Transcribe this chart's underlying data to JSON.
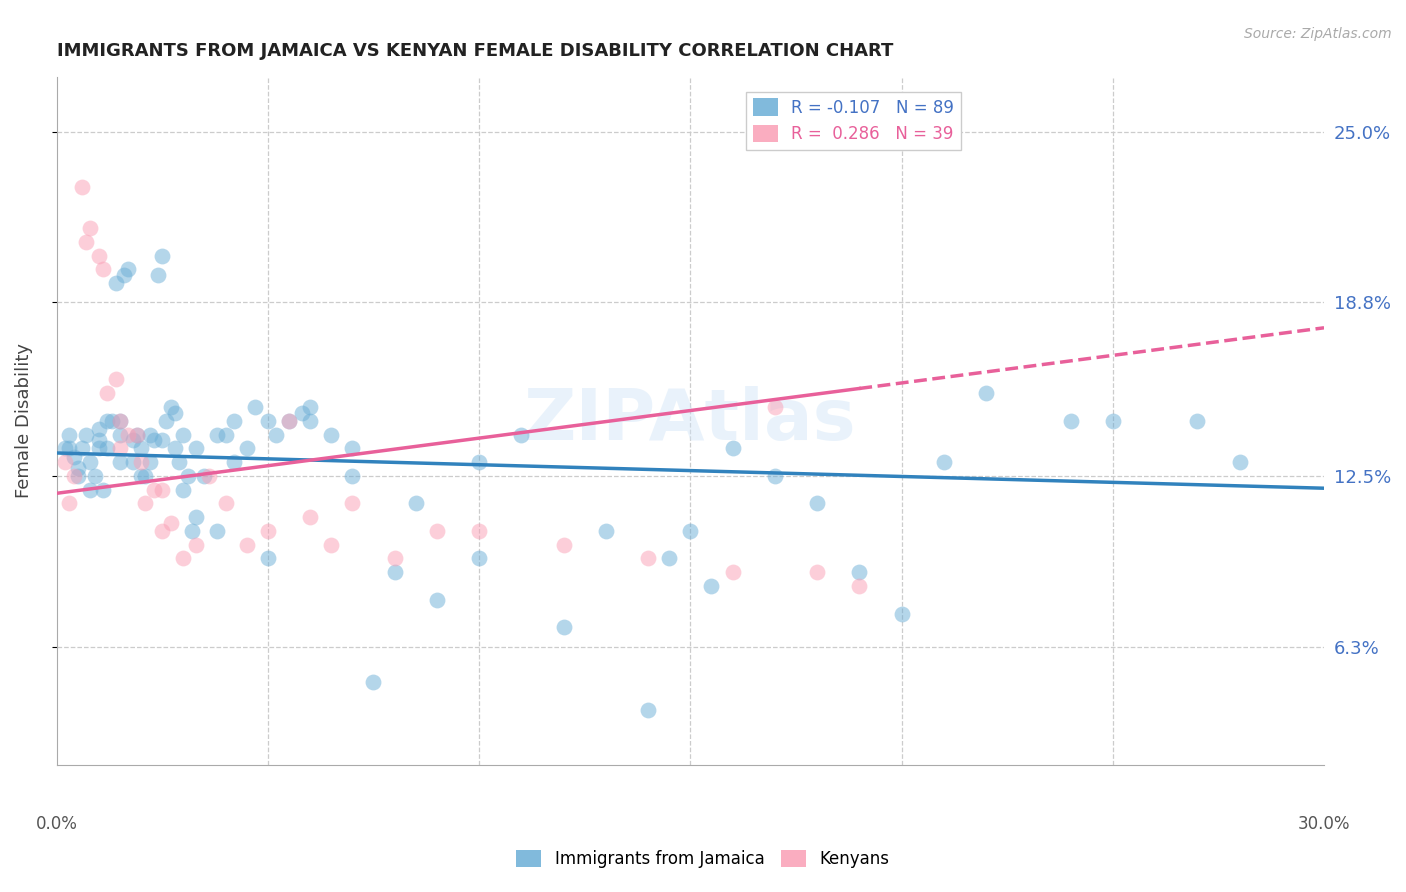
{
  "title": "IMMIGRANTS FROM JAMAICA VS KENYAN FEMALE DISABILITY CORRELATION CHART",
  "source": "Source: ZipAtlas.com",
  "ylabel": "Female Disability",
  "y_ticks": [
    6.3,
    12.5,
    18.8,
    25.0
  ],
  "y_tick_labels": [
    "6.3%",
    "12.5%",
    "18.8%",
    "25.0%"
  ],
  "x_min": 0.0,
  "x_max": 30.0,
  "y_min": 2.0,
  "y_max": 27.0,
  "color_blue": "#6baed6",
  "color_pink": "#fa9fb5",
  "line_blue": "#3182bd",
  "line_pink": "#e8609a",
  "watermark": "ZIPAtlas",
  "jamaica_x": [
    0.2,
    0.3,
    0.4,
    0.5,
    0.6,
    0.7,
    0.8,
    0.9,
    1.0,
    1.0,
    1.1,
    1.2,
    1.3,
    1.4,
    1.5,
    1.5,
    1.6,
    1.7,
    1.8,
    1.9,
    2.0,
    2.1,
    2.2,
    2.3,
    2.4,
    2.5,
    2.6,
    2.7,
    2.8,
    2.9,
    3.0,
    3.1,
    3.2,
    3.3,
    3.5,
    3.8,
    4.0,
    4.2,
    4.5,
    4.7,
    5.0,
    5.2,
    5.5,
    5.8,
    6.0,
    6.5,
    7.0,
    7.5,
    8.0,
    9.0,
    10.0,
    11.0,
    12.0,
    13.0,
    14.0,
    14.5,
    15.0,
    15.5,
    16.0,
    17.0,
    18.0,
    19.0,
    20.0,
    21.0,
    22.0,
    24.0,
    25.0,
    0.3,
    0.5,
    0.8,
    1.0,
    1.2,
    1.5,
    1.8,
    2.0,
    2.2,
    2.5,
    2.8,
    3.0,
    3.3,
    3.8,
    4.2,
    5.0,
    6.0,
    7.0,
    8.5,
    10.0,
    27.0,
    28.0
  ],
  "jamaica_y": [
    13.5,
    14.0,
    13.2,
    12.8,
    13.5,
    14.0,
    13.0,
    12.5,
    13.8,
    14.2,
    12.0,
    13.5,
    14.5,
    19.5,
    13.0,
    14.5,
    19.8,
    20.0,
    13.8,
    14.0,
    13.5,
    12.5,
    13.0,
    13.8,
    19.8,
    20.5,
    14.5,
    15.0,
    14.8,
    13.0,
    14.0,
    12.5,
    10.5,
    11.0,
    12.5,
    10.5,
    14.0,
    14.5,
    13.5,
    15.0,
    9.5,
    14.0,
    14.5,
    14.8,
    14.5,
    14.0,
    13.5,
    5.0,
    9.0,
    8.0,
    9.5,
    14.0,
    7.0,
    10.5,
    4.0,
    9.5,
    10.5,
    8.5,
    13.5,
    12.5,
    11.5,
    9.0,
    7.5,
    13.0,
    15.5,
    14.5,
    14.5,
    13.5,
    12.5,
    12.0,
    13.5,
    14.5,
    14.0,
    13.0,
    12.5,
    14.0,
    13.8,
    13.5,
    12.0,
    13.5,
    14.0,
    13.0,
    14.5,
    15.0,
    12.5,
    11.5,
    13.0,
    14.5,
    13.0
  ],
  "kenya_x": [
    0.2,
    0.3,
    0.4,
    0.6,
    0.7,
    0.8,
    1.0,
    1.1,
    1.2,
    1.4,
    1.5,
    1.5,
    1.7,
    1.9,
    2.0,
    2.1,
    2.3,
    2.5,
    2.5,
    2.7,
    3.0,
    3.3,
    3.6,
    4.0,
    4.5,
    5.0,
    5.5,
    6.0,
    6.5,
    7.0,
    8.0,
    9.0,
    10.0,
    12.0,
    14.0,
    16.0,
    17.0,
    18.0,
    19.0
  ],
  "kenya_y": [
    13.0,
    11.5,
    12.5,
    23.0,
    21.0,
    21.5,
    20.5,
    20.0,
    15.5,
    16.0,
    13.5,
    14.5,
    14.0,
    14.0,
    13.0,
    11.5,
    12.0,
    10.5,
    12.0,
    10.8,
    9.5,
    10.0,
    12.5,
    11.5,
    10.0,
    10.5,
    14.5,
    11.0,
    10.0,
    11.5,
    9.5,
    10.5,
    10.5,
    10.0,
    9.5,
    9.0,
    15.0,
    9.0,
    8.5
  ]
}
